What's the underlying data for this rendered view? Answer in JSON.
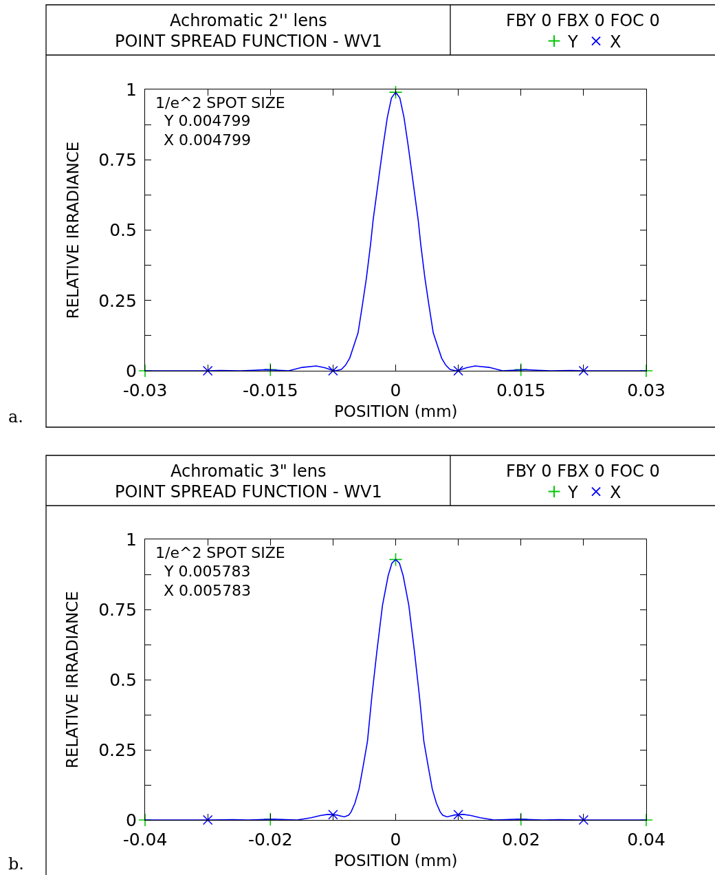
{
  "chart_data": [
    {
      "type": "line",
      "title": "Achromatic 2'' lens",
      "subtitle": "POINT SPREAD FUNCTION - WV1",
      "xlabel": "POSITION (mm)",
      "ylabel": "RELATIVE IRRADIANCE",
      "annotations": [
        "FBY 0 FBX 0 FOC 0",
        "1/e^2 SPOT SIZE",
        "Y 0.004799",
        "X 0.004799",
        "a."
      ],
      "xlim": [
        -0.03,
        0.03
      ],
      "xticks": [
        -0.03,
        {
          "value": -0.0225,
          "label": null
        },
        -0.015,
        {
          "value": -0.0075,
          "label": null
        },
        0,
        {
          "value": 0.0075,
          "label": null
        },
        0.015,
        {
          "value": 0.0225,
          "label": null
        },
        0.03
      ],
      "ylim": [
        0,
        1
      ],
      "yticks": [
        0,
        {
          "value": 0.125,
          "label": null
        },
        0.25,
        {
          "value": 0.375,
          "label": null
        },
        0.5,
        {
          "value": 0.625,
          "label": null
        },
        0.75,
        {
          "value": 0.875,
          "label": null
        },
        1
      ],
      "legend": "top right",
      "series": [
        {
          "name": "Y",
          "color": "#00c800",
          "type": "scatter",
          "marker": "cross",
          "x": [
            -0.03,
            -0.015,
            0,
            0.015,
            0.03
          ],
          "values": [
            0,
            0.004,
            0.99,
            0.004,
            0
          ]
        },
        {
          "color": "#0000ff",
          "marker": "none",
          "line_style": "solid",
          "x": [
            -0.03,
            -0.026,
            -0.0225,
            -0.021,
            -0.0186,
            -0.017,
            -0.0155,
            -0.014,
            -0.0128,
            -0.0112,
            -0.0095,
            -0.0085,
            -0.0075,
            -0.0072,
            -0.0065,
            -0.006,
            -0.0055,
            -0.005,
            -0.0045,
            -0.004,
            -0.0035,
            -0.003,
            -0.0027,
            -0.002,
            -0.0015,
            -0.001,
            -0.0005,
            0,
            0.0005,
            0.001,
            0.0015,
            0.002,
            0.0027,
            0.003,
            0.0035,
            0.004,
            0.0045,
            0.005,
            0.0055,
            0.006,
            0.0065,
            0.0072,
            0.0075,
            0.0085,
            0.0095,
            0.0112,
            0.0128,
            0.014,
            0.0155,
            0.017,
            0.0186,
            0.021,
            0.0225,
            0.026,
            0.03
          ],
          "values": [
            0,
            0,
            0,
            0.001,
            0,
            0.002,
            0.004,
            0.002,
            0,
            0.012,
            0.017,
            0.011,
            0.001,
            0,
            0.005,
            0.02,
            0.045,
            0.09,
            0.135,
            0.23,
            0.33,
            0.45,
            0.535,
            0.69,
            0.8,
            0.9,
            0.97,
            0.99,
            0.97,
            0.9,
            0.8,
            0.69,
            0.535,
            0.45,
            0.33,
            0.23,
            0.135,
            0.09,
            0.045,
            0.02,
            0.005,
            0,
            0.001,
            0.011,
            0.017,
            0.012,
            0,
            0.002,
            0.004,
            0.002,
            0,
            0.001,
            0,
            0,
            0
          ]
        },
        {
          "name": "X",
          "color": "#0000ff",
          "type": "scatter",
          "marker": "x",
          "x": [
            -0.0225,
            -0.0075,
            0.0075,
            0.0225
          ],
          "values": [
            0,
            0,
            0,
            0
          ]
        }
      ]
    },
    {
      "type": "line",
      "title": "Achromatic 3\" lens",
      "subtitle": "POINT SPREAD FUNCTION - WV1",
      "xlabel": "POSITION (mm)",
      "ylabel": "RELATIVE IRRADIANCE",
      "annotations": [
        "FBY 0 FBX 0 FOC 0",
        "1/e^2 SPOT SIZE",
        "Y 0.005783",
        "X 0.005783",
        "b."
      ],
      "xlim": [
        -0.04,
        0.04
      ],
      "xticks": [
        -0.04,
        {
          "value": -0.03,
          "label": null
        },
        -0.02,
        {
          "value": -0.01,
          "label": null
        },
        0,
        {
          "value": 0.01,
          "label": null
        },
        0.02,
        {
          "value": 0.03,
          "label": null
        },
        0.04
      ],
      "ylim": [
        0,
        1
      ],
      "yticks": [
        0,
        {
          "value": 0.125,
          "label": null
        },
        0.25,
        {
          "value": 0.375,
          "label": null
        },
        0.5,
        {
          "value": 0.625,
          "label": null
        },
        0.75,
        {
          "value": 0.875,
          "label": null
        },
        1
      ],
      "legend": "top right",
      "series": [
        {
          "name": "Y",
          "color": "#00c800",
          "type": "scatter",
          "marker": "cross",
          "x": [
            -0.04,
            -0.02,
            0,
            0.02,
            0.04
          ],
          "values": [
            0,
            0.003,
            0.928,
            0.003,
            0
          ]
        },
        {
          "color": "#0000ff",
          "marker": "none",
          "line_style": "solid",
          "x": [
            -0.04,
            -0.035,
            -0.03,
            -0.026,
            -0.0235,
            -0.021,
            -0.0195,
            -0.0175,
            -0.0157,
            -0.0135,
            -0.012,
            -0.0108,
            -0.0095,
            -0.0082,
            -0.0075,
            -0.0071,
            -0.0065,
            -0.00585,
            -0.0052,
            -0.0045,
            -0.0038,
            -0.003,
            -0.0021,
            -0.0012,
            -0.0006,
            0,
            0.0006,
            0.0012,
            0.0021,
            0.003,
            0.0038,
            0.0045,
            0.0052,
            0.00585,
            0.0065,
            0.0071,
            0.0075,
            0.0082,
            0.0095,
            0.0108,
            0.012,
            0.0135,
            0.0157,
            0.0175,
            0.0195,
            0.021,
            0.0235,
            0.026,
            0.03,
            0.035,
            0.04
          ],
          "values": [
            0,
            0,
            0,
            0.001,
            0,
            0.002,
            0.003,
            0.001,
            0,
            0.008,
            0.016,
            0.02,
            0.018,
            0.011,
            0.017,
            0.029,
            0.06,
            0.11,
            0.19,
            0.28,
            0.44,
            0.6,
            0.765,
            0.87,
            0.915,
            0.928,
            0.915,
            0.87,
            0.765,
            0.6,
            0.44,
            0.28,
            0.19,
            0.11,
            0.06,
            0.029,
            0.017,
            0.011,
            0.018,
            0.02,
            0.016,
            0.008,
            0,
            0.001,
            0.003,
            0.002,
            0,
            0.001,
            0,
            0,
            0
          ]
        },
        {
          "name": "X",
          "color": "#0000ff",
          "type": "scatter",
          "marker": "x",
          "x": [
            -0.03,
            -0.01,
            0.01,
            0.03
          ],
          "values": [
            0,
            0.019,
            0.019,
            0
          ]
        }
      ]
    }
  ]
}
